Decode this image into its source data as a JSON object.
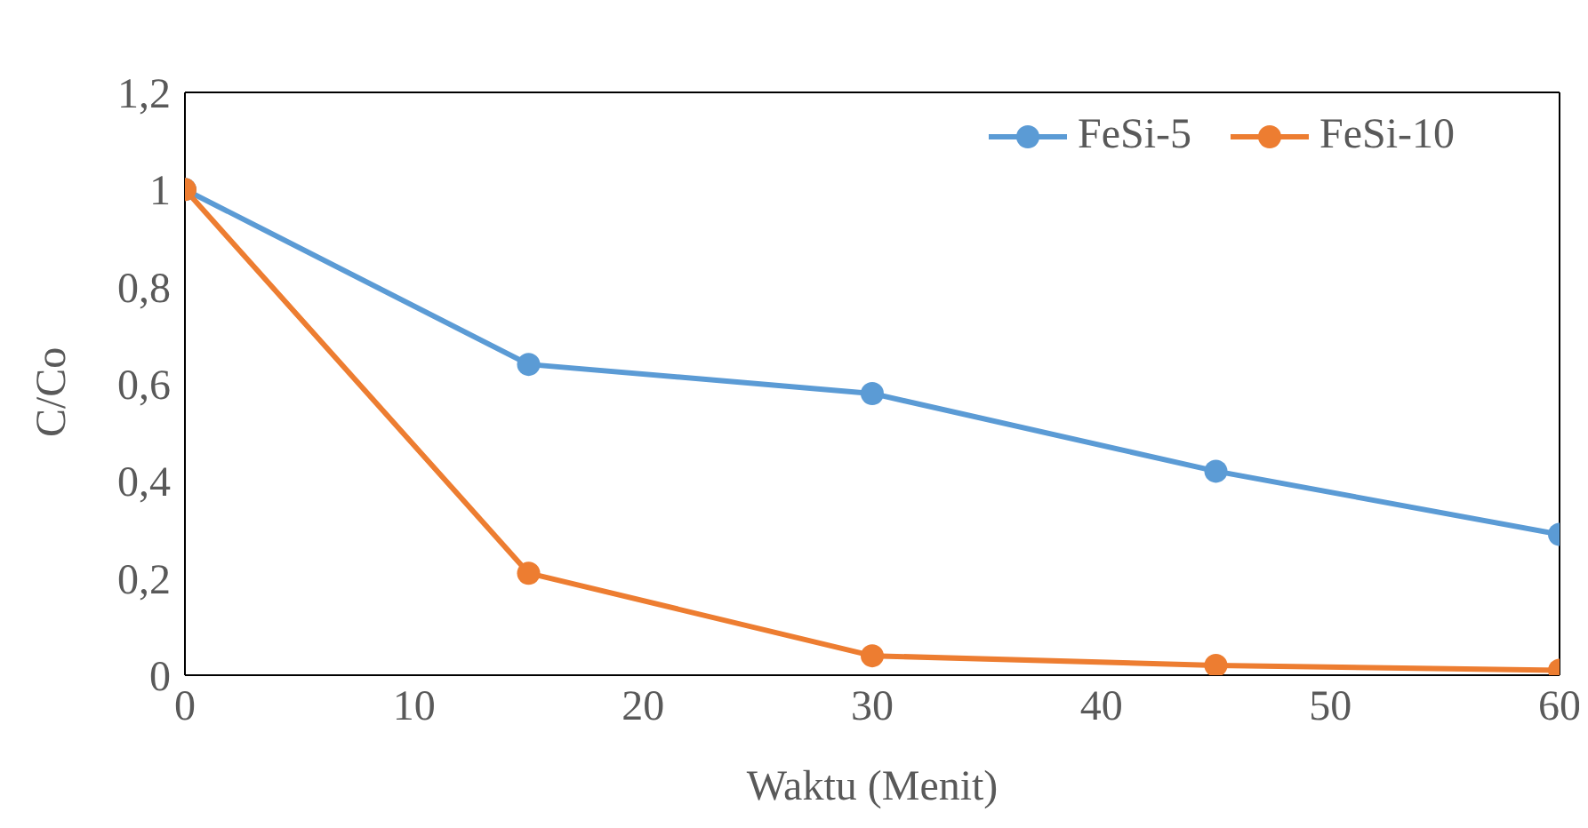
{
  "chart_data": {
    "type": "line",
    "xlabel": "Waktu (Menit)",
    "ylabel": "C/Co",
    "x": [
      0,
      15,
      30,
      45,
      60
    ],
    "series": [
      {
        "name": "FeSi-5",
        "color": "#5b9bd5",
        "values": [
          1,
          0.64,
          0.58,
          0.42,
          0.29
        ]
      },
      {
        "name": "FeSi-10",
        "color": "#ed7d31",
        "values": [
          1,
          0.21,
          0.04,
          0.02,
          0.01
        ]
      }
    ],
    "xlim": [
      0,
      60
    ],
    "xticks": [
      0,
      10,
      20,
      30,
      40,
      50,
      60
    ],
    "ylim": [
      0,
      1.2
    ],
    "yticks": [
      0,
      {
        "value": 0.2,
        "label": "0,2"
      },
      {
        "value": 0.4,
        "label": "0,4"
      },
      {
        "value": 0.6,
        "label": "0,6"
      },
      {
        "value": 0.8,
        "label": "0,8"
      },
      1,
      {
        "value": 1.2,
        "label": "1,2"
      }
    ],
    "grid": false,
    "legend": "top right",
    "marker": "circle",
    "line_style": "solid"
  }
}
